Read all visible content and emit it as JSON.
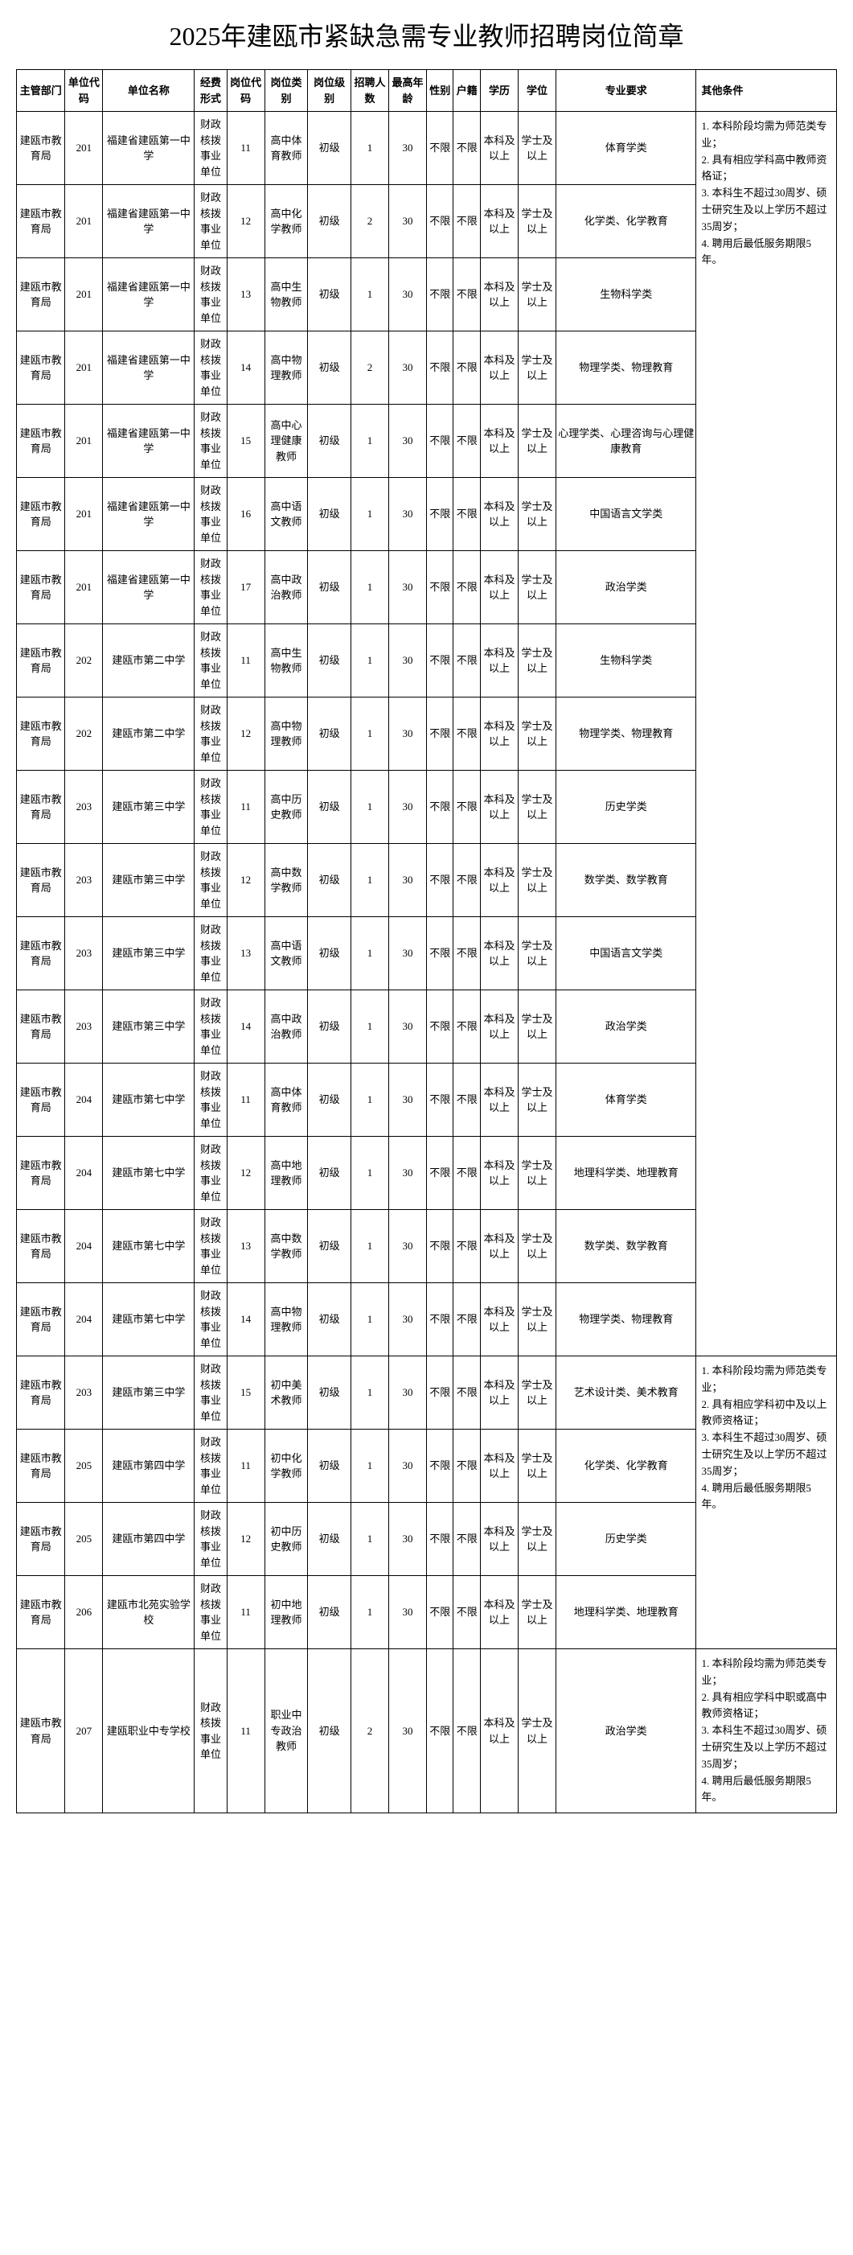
{
  "title": "2025年建瓯市紧缺急需专业教师招聘岗位简章",
  "headers": {
    "dept": "主管部门",
    "unitcode": "单位代码",
    "unitname": "单位名称",
    "funding": "经费形式",
    "poscode": "岗位代码",
    "postype": "岗位类别",
    "poslevel": "岗位级别",
    "count": "招聘人数",
    "age": "最高年龄",
    "gender": "性别",
    "residence": "户籍",
    "edu": "学历",
    "degree": "学位",
    "major": "专业要求",
    "other": "其他条件"
  },
  "common": {
    "dept": "建瓯市教育局",
    "funding": "财政核拨事业单位",
    "poslevel": "初级",
    "gender": "不限",
    "residence": "不限",
    "edu": "本科及以上",
    "degree": "学士及以上"
  },
  "rows": [
    {
      "unitcode": "201",
      "unitname": "福建省建瓯第一中学",
      "poscode": "11",
      "postype": "高中体育教师",
      "count": "1",
      "age": "30",
      "major": "体育学类"
    },
    {
      "unitcode": "201",
      "unitname": "福建省建瓯第一中学",
      "poscode": "12",
      "postype": "高中化学教师",
      "count": "2",
      "age": "30",
      "major": "化学类、化学教育"
    },
    {
      "unitcode": "201",
      "unitname": "福建省建瓯第一中学",
      "poscode": "13",
      "postype": "高中生物教师",
      "count": "1",
      "age": "30",
      "major": "生物科学类"
    },
    {
      "unitcode": "201",
      "unitname": "福建省建瓯第一中学",
      "poscode": "14",
      "postype": "高中物理教师",
      "count": "2",
      "age": "30",
      "major": "物理学类、物理教育"
    },
    {
      "unitcode": "201",
      "unitname": "福建省建瓯第一中学",
      "poscode": "15",
      "postype": "高中心理健康教师",
      "count": "1",
      "age": "30",
      "major": "心理学类、心理咨询与心理健康教育"
    },
    {
      "unitcode": "201",
      "unitname": "福建省建瓯第一中学",
      "poscode": "16",
      "postype": "高中语文教师",
      "count": "1",
      "age": "30",
      "major": "中国语言文学类"
    },
    {
      "unitcode": "201",
      "unitname": "福建省建瓯第一中学",
      "poscode": "17",
      "postype": "高中政治教师",
      "count": "1",
      "age": "30",
      "major": "政治学类"
    },
    {
      "unitcode": "202",
      "unitname": "建瓯市第二中学",
      "poscode": "11",
      "postype": "高中生物教师",
      "count": "1",
      "age": "30",
      "major": "生物科学类"
    },
    {
      "unitcode": "202",
      "unitname": "建瓯市第二中学",
      "poscode": "12",
      "postype": "高中物理教师",
      "count": "1",
      "age": "30",
      "major": "物理学类、物理教育"
    },
    {
      "unitcode": "203",
      "unitname": "建瓯市第三中学",
      "poscode": "11",
      "postype": "高中历史教师",
      "count": "1",
      "age": "30",
      "major": "历史学类"
    },
    {
      "unitcode": "203",
      "unitname": "建瓯市第三中学",
      "poscode": "12",
      "postype": "高中数学教师",
      "count": "1",
      "age": "30",
      "major": "数学类、数学教育"
    },
    {
      "unitcode": "203",
      "unitname": "建瓯市第三中学",
      "poscode": "13",
      "postype": "高中语文教师",
      "count": "1",
      "age": "30",
      "major": "中国语言文学类"
    },
    {
      "unitcode": "203",
      "unitname": "建瓯市第三中学",
      "poscode": "14",
      "postype": "高中政治教师",
      "count": "1",
      "age": "30",
      "major": "政治学类"
    },
    {
      "unitcode": "204",
      "unitname": "建瓯市第七中学",
      "poscode": "11",
      "postype": "高中体育教师",
      "count": "1",
      "age": "30",
      "major": "体育学类"
    },
    {
      "unitcode": "204",
      "unitname": "建瓯市第七中学",
      "poscode": "12",
      "postype": "高中地理教师",
      "count": "1",
      "age": "30",
      "major": "地理科学类、地理教育"
    },
    {
      "unitcode": "204",
      "unitname": "建瓯市第七中学",
      "poscode": "13",
      "postype": "高中数学教师",
      "count": "1",
      "age": "30",
      "major": "数学类、数学教育"
    },
    {
      "unitcode": "204",
      "unitname": "建瓯市第七中学",
      "poscode": "14",
      "postype": "高中物理教师",
      "count": "1",
      "age": "30",
      "major": "物理学类、物理教育"
    },
    {
      "unitcode": "203",
      "unitname": "建瓯市第三中学",
      "poscode": "15",
      "postype": "初中美术教师",
      "count": "1",
      "age": "30",
      "major": "艺术设计类、美术教育"
    },
    {
      "unitcode": "205",
      "unitname": "建瓯市第四中学",
      "poscode": "11",
      "postype": "初中化学教师",
      "count": "1",
      "age": "30",
      "major": "化学类、化学教育"
    },
    {
      "unitcode": "205",
      "unitname": "建瓯市第四中学",
      "poscode": "12",
      "postype": "初中历史教师",
      "count": "1",
      "age": "30",
      "major": "历史学类"
    },
    {
      "unitcode": "206",
      "unitname": "建瓯市北苑实验学校",
      "poscode": "11",
      "postype": "初中地理教师",
      "count": "1",
      "age": "30",
      "major": "地理科学类、地理教育"
    },
    {
      "unitcode": "207",
      "unitname": "建瓯职业中专学校",
      "poscode": "11",
      "postype": "职业中专政治教师",
      "count": "2",
      "age": "30",
      "major": "政治学类"
    }
  ],
  "otherConditions": {
    "group1": "1. 本科阶段均需为师范类专业；\n2. 具有相应学科高中教师资格证；\n3. 本科生不超过30周岁、硕士研究生及以上学历不超过35周岁；\n4. 聘用后最低服务期限5年。",
    "group2": "1. 本科阶段均需为师范类专业；\n2. 具有相应学科初中及以上教师资格证；\n3. 本科生不超过30周岁、硕士研究生及以上学历不超过35周岁；\n4. 聘用后最低服务期限5年。",
    "group3": "1. 本科阶段均需为师范类专业；\n2. 具有相应学科中职或高中教师资格证；\n3. 本科生不超过30周岁、硕士研究生及以上学历不超过35周岁；\n4. 聘用后最低服务期限5年。"
  }
}
